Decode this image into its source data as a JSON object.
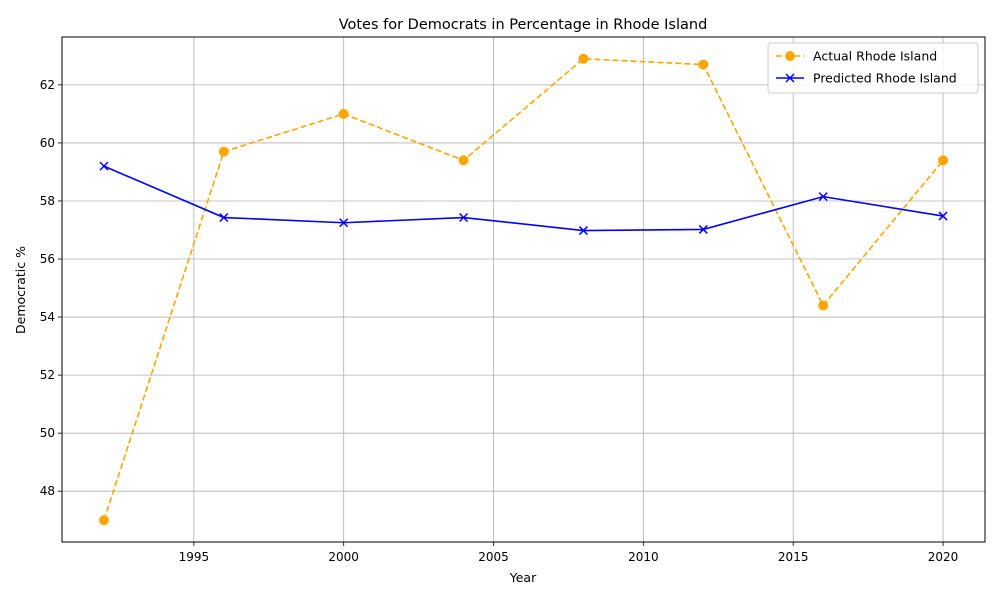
{
  "chart_data": {
    "type": "line",
    "title": "Votes for Democrats in Percentage in Rhode Island",
    "xlabel": "Year",
    "ylabel": "Democratic %",
    "xlim": [
      1990.6,
      2021.4
    ],
    "ylim": [
      46.25,
      63.65
    ],
    "xticks": [
      1995,
      2000,
      2005,
      2010,
      2015,
      2020
    ],
    "yticks": [
      48,
      50,
      52,
      54,
      56,
      58,
      60,
      62
    ],
    "grid": true,
    "legend_position": "top-right",
    "x": [
      1992,
      1996,
      2000,
      2004,
      2008,
      2012,
      2016,
      2020
    ],
    "series": [
      {
        "name": "Actual Rhode Island",
        "color": "#ffa500",
        "line_style": "dashed",
        "marker": "circle",
        "values": [
          47.0,
          59.7,
          61.0,
          59.4,
          62.9,
          62.7,
          54.4,
          59.4
        ]
      },
      {
        "name": "Predicted Rhode Island",
        "color": "#0000ff",
        "line_style": "solid",
        "marker": "x",
        "values": [
          59.2,
          57.43,
          57.25,
          57.43,
          56.98,
          57.02,
          58.15,
          57.48
        ]
      }
    ]
  }
}
